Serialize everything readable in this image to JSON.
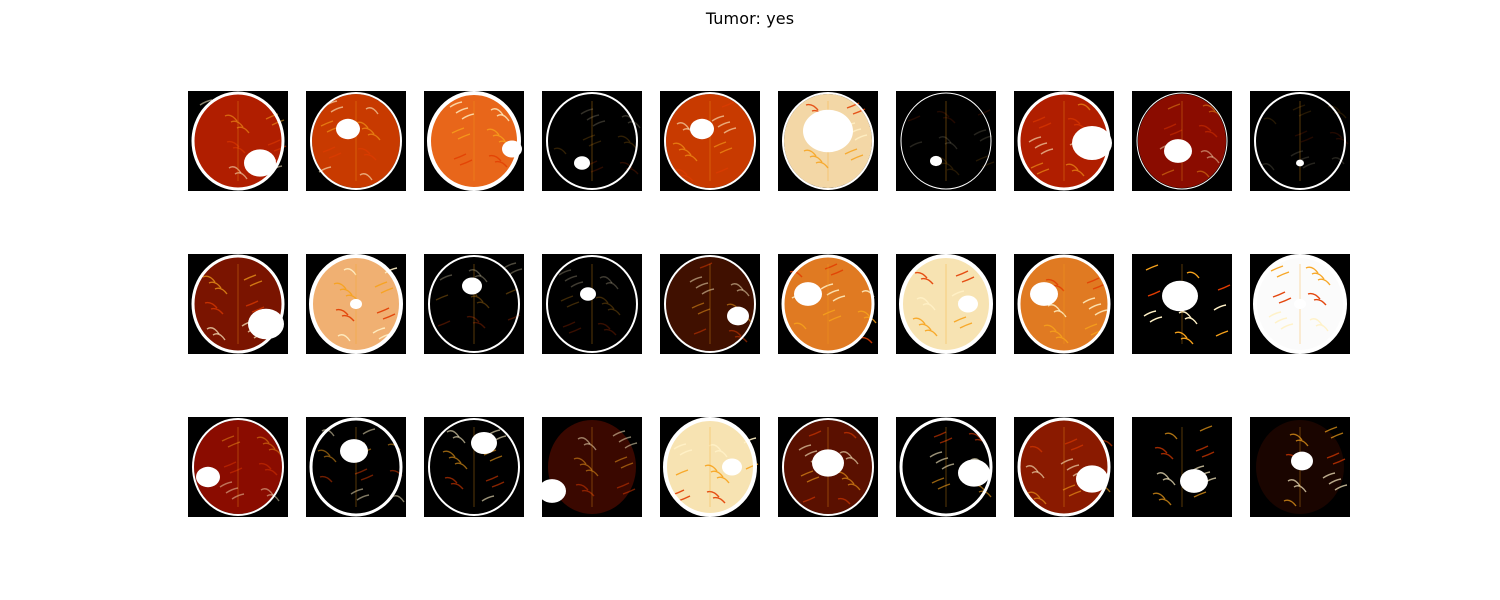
{
  "figure": {
    "title": "Tumor: yes"
  },
  "colors": {
    "background": "#000000",
    "skull": "#ffffff",
    "tissue_hot": "#e23c00",
    "tissue_warm": "#f7a21b",
    "tissue_bright": "#fff1c6"
  },
  "tiles": [
    {
      "row": 1,
      "col": 1,
      "brain": "mri-brain-scan"
    },
    {
      "row": 1,
      "col": 2,
      "brain": "mri-brain-scan"
    },
    {
      "row": 1,
      "col": 3,
      "brain": "mri-brain-scan"
    },
    {
      "row": 1,
      "col": 4,
      "brain": "mri-brain-scan"
    },
    {
      "row": 1,
      "col": 5,
      "brain": "mri-brain-scan"
    },
    {
      "row": 1,
      "col": 6,
      "brain": "mri-brain-scan"
    },
    {
      "row": 1,
      "col": 7,
      "brain": "mri-brain-scan"
    },
    {
      "row": 1,
      "col": 8,
      "brain": "mri-brain-scan"
    },
    {
      "row": 1,
      "col": 9,
      "brain": "mri-brain-scan"
    },
    {
      "row": 1,
      "col": 10,
      "brain": "mri-brain-scan"
    },
    {
      "row": 2,
      "col": 1,
      "brain": "mri-brain-scan"
    },
    {
      "row": 2,
      "col": 2,
      "brain": "mri-brain-scan"
    },
    {
      "row": 2,
      "col": 3,
      "brain": "mri-brain-scan"
    },
    {
      "row": 2,
      "col": 4,
      "brain": "mri-brain-scan"
    },
    {
      "row": 2,
      "col": 5,
      "brain": "mri-brain-scan"
    },
    {
      "row": 2,
      "col": 6,
      "brain": "mri-brain-scan"
    },
    {
      "row": 2,
      "col": 7,
      "brain": "mri-brain-scan"
    },
    {
      "row": 2,
      "col": 8,
      "brain": "mri-brain-scan"
    },
    {
      "row": 2,
      "col": 9,
      "brain": "mri-brain-scan"
    },
    {
      "row": 2,
      "col": 10,
      "brain": "mri-brain-scan"
    },
    {
      "row": 3,
      "col": 1,
      "brain": "mri-brain-scan"
    },
    {
      "row": 3,
      "col": 2,
      "brain": "mri-brain-scan"
    },
    {
      "row": 3,
      "col": 3,
      "brain": "mri-brain-scan"
    },
    {
      "row": 3,
      "col": 4,
      "brain": "mri-brain-scan"
    },
    {
      "row": 3,
      "col": 5,
      "brain": "mri-brain-scan"
    },
    {
      "row": 3,
      "col": 6,
      "brain": "mri-brain-scan"
    },
    {
      "row": 3,
      "col": 7,
      "brain": "mri-brain-scan"
    },
    {
      "row": 3,
      "col": 8,
      "brain": "mri-brain-scan"
    },
    {
      "row": 3,
      "col": 9,
      "brain": "mri-brain-scan"
    },
    {
      "row": 3,
      "col": 10,
      "brain": "mri-brain-scan"
    }
  ]
}
